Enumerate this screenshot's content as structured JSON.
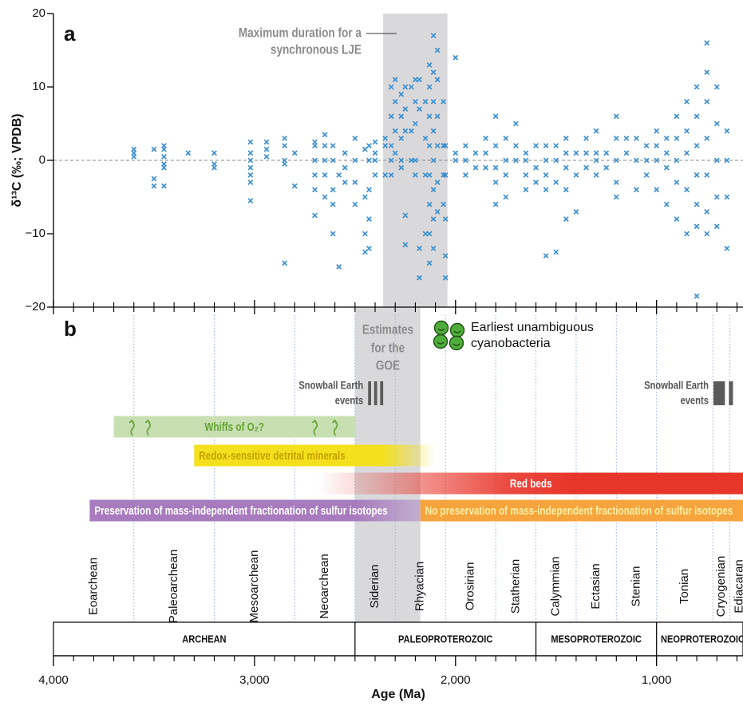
{
  "chart_data": [
    {
      "type": "scatter",
      "panel_label": "a",
      "y_label": "δ¹³C (‰; VPDB)",
      "xlim": [
        4000,
        570
      ],
      "ylim": [
        -20,
        20
      ],
      "yticks": [
        20,
        10,
        0,
        {
          "value": -10,
          "label": "−10"
        },
        {
          "value": -20,
          "label": "−20"
        }
      ],
      "reference_line": 0,
      "shaded": {
        "start": 2360,
        "end": 2040,
        "label": [
          "Maximum duration for a",
          "synchronous LJE"
        ]
      },
      "series": [
        {
          "color": "#3d8fd0",
          "x": [
            3600,
            3600,
            3600,
            3500,
            3500,
            3500,
            3450,
            3450,
            3450,
            3450,
            3450,
            3450,
            3330,
            3200,
            3200,
            3200,
            3020,
            3020,
            3020,
            3020,
            3020,
            3020,
            3020,
            2940,
            2940,
            2940,
            2850,
            2850,
            2850,
            2850,
            2850,
            2800,
            2800,
            2700,
            2700,
            2700,
            2700,
            2700,
            2700,
            2650,
            2650,
            2650,
            2650,
            2650,
            2610,
            2610,
            2610,
            2610,
            2610,
            2580,
            2580,
            2550,
            2550,
            2550,
            2500,
            2500,
            2500,
            2500,
            2450,
            2450,
            2450,
            2450,
            2430,
            2430,
            2430,
            2430,
            2430,
            2400,
            2400,
            2400,
            2400,
            2350,
            2350,
            2350,
            2320,
            2320,
            2320,
            2320,
            2320,
            2300,
            2300,
            2300,
            2300,
            2270,
            2270,
            2270,
            2270,
            2270,
            2250,
            2250,
            2250,
            2250,
            2250,
            2220,
            2220,
            2220,
            2200,
            2200,
            2200,
            2200,
            2200,
            2180,
            2180,
            2180,
            2180,
            2150,
            2150,
            2150,
            2150,
            2130,
            2130,
            2130,
            2130,
            2130,
            2130,
            2130,
            2130,
            2110,
            2110,
            2110,
            2110,
            2110,
            2110,
            2110,
            2110,
            2090,
            2090,
            2090,
            2090,
            2090,
            2090,
            2060,
            2060,
            2060,
            2060,
            2050,
            2050,
            2050,
            2050,
            2050,
            2000,
            2000,
            2000,
            1950,
            1950,
            1950,
            1900,
            1900,
            1850,
            1850,
            1850,
            1800,
            1800,
            1800,
            1800,
            1800,
            1750,
            1750,
            1750,
            1750,
            1700,
            1700,
            1700,
            1650,
            1650,
            1650,
            1650,
            1600,
            1600,
            1600,
            1550,
            1550,
            1550,
            1550,
            1550,
            1500,
            1500,
            1500,
            1500,
            1450,
            1450,
            1450,
            1450,
            1450,
            1400,
            1400,
            1400,
            1350,
            1350,
            1350,
            1300,
            1300,
            1300,
            1300,
            1250,
            1250,
            1200,
            1200,
            1200,
            1200,
            1200,
            1150,
            1150,
            1100,
            1100,
            1100,
            1050,
            1050,
            1050,
            1000,
            1000,
            1000,
            1000,
            950,
            950,
            950,
            950,
            900,
            900,
            900,
            900,
            900,
            850,
            850,
            850,
            850,
            850,
            800,
            800,
            800,
            800,
            800,
            800,
            800,
            750,
            750,
            750,
            750,
            750,
            750,
            750,
            700,
            700,
            700,
            700,
            700,
            650,
            650,
            650,
            650
          ],
          "values": [
            1.5,
            0.5,
            1,
            1.5,
            -2.5,
            -3.5,
            2,
            1.5,
            0.5,
            -0.5,
            -1,
            -3.5,
            1,
            1,
            -0.5,
            -1,
            2.5,
            1,
            0,
            -1,
            -2,
            -3,
            -5.5,
            2.5,
            1.5,
            0.5,
            3,
            2,
            0,
            -0.5,
            -14,
            1,
            -3.5,
            2.5,
            2,
            0,
            -2,
            -4,
            -7.5,
            3.5,
            2,
            0,
            -2,
            -5,
            2,
            0,
            -4,
            -6,
            -10,
            -14.5,
            -2,
            1,
            -1,
            -3,
            3,
            0,
            -3,
            -6,
            1.5,
            -5,
            -10,
            -12.5,
            2,
            0,
            -4,
            -8,
            -12,
            2.5,
            1,
            0,
            -2,
            3,
            2,
            -2,
            10,
            6,
            2,
            0,
            -2,
            11,
            8,
            4,
            1,
            9,
            6,
            3,
            0,
            -1,
            10,
            7,
            4,
            -7.5,
            -11.5,
            10,
            4,
            0,
            11,
            8,
            5,
            0,
            -2,
            11,
            7,
            -16,
            -12,
            8,
            3,
            -2,
            -10,
            13,
            10,
            6,
            2,
            -2,
            -6,
            -10,
            -14,
            17,
            12,
            8,
            4,
            0,
            -4,
            -8,
            -12,
            15,
            11,
            6,
            2,
            -3,
            -7,
            8,
            2,
            -2,
            -6,
            2,
            -2,
            -8,
            -13,
            -16,
            14,
            1,
            0,
            2,
            0,
            -2,
            1,
            -1,
            3,
            1,
            -1,
            6,
            2,
            -1,
            -3,
            -6,
            3,
            0,
            -2,
            -5,
            5,
            2,
            0,
            1,
            0,
            -2,
            -4,
            2,
            -1,
            -3,
            2,
            0,
            -2,
            -4,
            -13,
            2,
            0,
            -3,
            -12.5,
            3,
            1,
            -1,
            -4,
            -8,
            1,
            -2,
            -7,
            3,
            1,
            -1,
            4,
            1,
            0,
            -2,
            1,
            -1,
            6,
            3,
            0,
            -3,
            -5,
            3,
            1,
            3,
            0,
            -4,
            2,
            0,
            -2,
            4,
            2,
            0,
            -4,
            3,
            1,
            -1,
            -6,
            6,
            3,
            0,
            -3,
            -8,
            8,
            4,
            1,
            -4,
            -10,
            10,
            6,
            2,
            -2,
            -6,
            -9,
            -18.5,
            16,
            12,
            8,
            3,
            -2,
            -7,
            -10,
            10,
            5,
            0,
            -5,
            -9,
            4,
            0,
            -5,
            -12
          ]
        }
      ]
    },
    {
      "type": "timeline",
      "panel_label": "b",
      "x_label": "Age (Ma)",
      "xlim": [
        4000,
        570
      ],
      "xticks": [
        {
          "value": 4000,
          "label": "4,000"
        },
        {
          "value": 3000,
          "label": "3,000"
        },
        {
          "value": 2000,
          "label": "2,000"
        },
        {
          "value": 1000,
          "label": "1,000"
        }
      ],
      "xminorticks": [
        3900,
        3800,
        3700,
        3600,
        3500,
        3400,
        3300,
        3200,
        3100,
        2900,
        2800,
        2700,
        2600,
        2500,
        2400,
        2300,
        2200,
        2100,
        1900,
        1800,
        1700,
        1600,
        1500,
        1400,
        1300,
        1200,
        1100,
        900,
        800,
        700,
        600
      ],
      "shaded": {
        "start": 2500,
        "end": 2175,
        "label": [
          "Estimates",
          "for the",
          "GOE"
        ]
      },
      "bars": [
        {
          "label": "Whiffs of O₂?",
          "start": 3700,
          "end": 2500,
          "color": "#c7dfb1",
          "text_color": "#64a332"
        },
        {
          "label": "Redox-sensitive detrital minerals",
          "start": 3300,
          "end": 2100,
          "color": "#f4e01c",
          "text_color": "#c4a200"
        },
        {
          "label": "Red beds",
          "start": 2680,
          "end": 570,
          "color": "#e8352a",
          "text_color": "#ffffff"
        },
        {
          "label": "Preservation of mass-independent fractionation of sulfur isotopes",
          "start": 3820,
          "end": 2175,
          "color": "#a77bbd",
          "text_color": "#ffffff"
        },
        {
          "label": "No preservation of mass-independent fractionation of sulfur isotopes",
          "start": 2175,
          "end": 570,
          "color": "#f6a43d",
          "text_color": "#fff1a6"
        }
      ],
      "whiff_arrows": [
        3610,
        3530,
        2700,
        2600
      ],
      "snowball": [
        {
          "label": [
            "Snowball Earth",
            "events"
          ],
          "events": [
            {
              "start": 2435,
              "end": 2420
            },
            {
              "start": 2405,
              "end": 2390
            },
            {
              "start": 2375,
              "end": 2360
            }
          ]
        },
        {
          "label": [
            "Snowball Earth",
            "events"
          ],
          "events": [
            {
              "start": 717,
              "end": 660
            },
            {
              "start": 640,
              "end": 620
            }
          ]
        }
      ],
      "cyanobacteria": {
        "label": [
          "Earliest unambiguous",
          "cyanobacteria"
        ]
      },
      "periods": [
        {
          "name": "Eoarchean",
          "start": 4000,
          "end": 3600
        },
        {
          "name": "Paleoarchean",
          "start": 3600,
          "end": 3200
        },
        {
          "name": "Mesoarchean",
          "start": 3200,
          "end": 2800
        },
        {
          "name": "Neoarchean",
          "start": 2800,
          "end": 2500
        },
        {
          "name": "Siderian",
          "start": 2500,
          "end": 2300
        },
        {
          "name": "Rhyacian",
          "start": 2300,
          "end": 2050
        },
        {
          "name": "Orosirian",
          "start": 2050,
          "end": 1800
        },
        {
          "name": "Statherian",
          "start": 1800,
          "end": 1600
        },
        {
          "name": "Calymmian",
          "start": 1600,
          "end": 1400
        },
        {
          "name": "Ectasian",
          "start": 1400,
          "end": 1200
        },
        {
          "name": "Stenian",
          "start": 1200,
          "end": 1000
        },
        {
          "name": "Tonian",
          "start": 1000,
          "end": 720
        },
        {
          "name": "Cryogenian",
          "start": 720,
          "end": 635
        },
        {
          "name": "Ediacaran",
          "start": 635,
          "end": 541
        }
      ],
      "eons": [
        {
          "name": "ARCHEAN",
          "start": 4000,
          "end": 2500
        },
        {
          "name": "PALEOPROTEROZOIC",
          "start": 2500,
          "end": 1600
        },
        {
          "name": "MESOPROTEROZOIC",
          "start": 1600,
          "end": 1000
        },
        {
          "name": "NEOPROTEROZOIC",
          "start": 1000,
          "end": 541
        }
      ]
    }
  ]
}
